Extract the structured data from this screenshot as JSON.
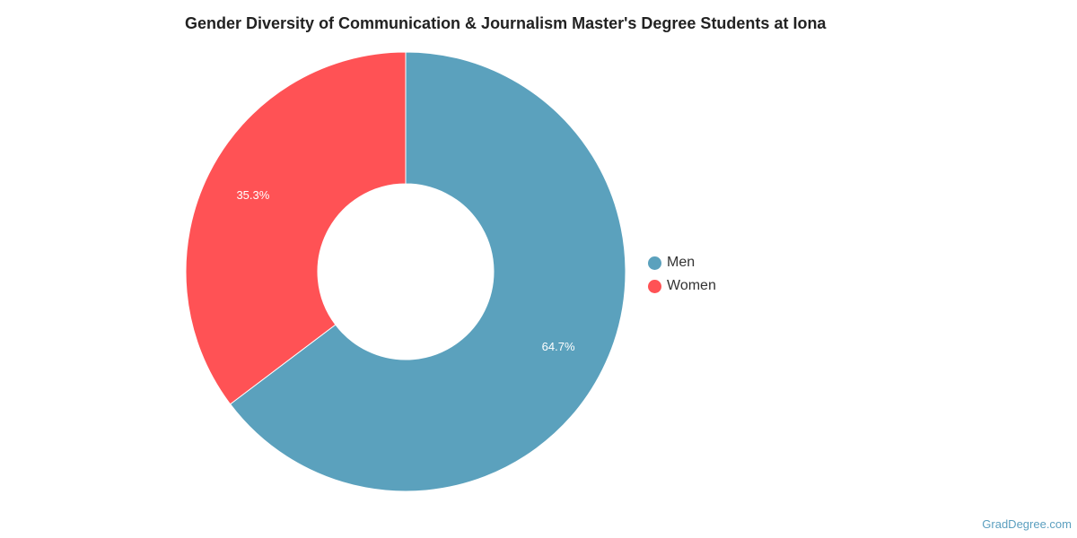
{
  "chart_data": {
    "type": "pie",
    "variant": "donut",
    "title": "Gender Diversity of Communication & Journalism Master's Degree Students at Iona",
    "categories": [
      "Men",
      "Women"
    ],
    "values": [
      64.7,
      35.3
    ],
    "labels": [
      "64.7%",
      "35.3%"
    ],
    "colors": [
      "#5ba1bd",
      "#ff5255"
    ],
    "legend_position": "right"
  },
  "footer": {
    "watermark": "GradDegree.com"
  }
}
